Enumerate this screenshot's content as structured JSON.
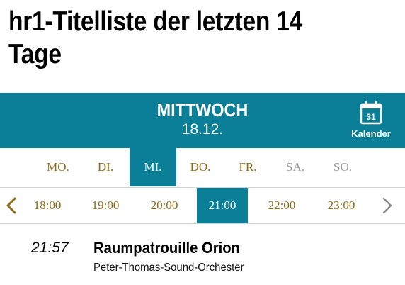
{
  "page": {
    "title": "hr1-Titelliste der letzten 14 Tage"
  },
  "day_header": {
    "day_name": "MITTWOCH",
    "date": "18.12.",
    "calendar_icon_number": "31",
    "calendar_label": "Kalender"
  },
  "weekdays": [
    {
      "label": "MO.",
      "state": "available"
    },
    {
      "label": "DI.",
      "state": "available"
    },
    {
      "label": "MI.",
      "state": "selected"
    },
    {
      "label": "DO.",
      "state": "available"
    },
    {
      "label": "FR.",
      "state": "available"
    },
    {
      "label": "SA.",
      "state": "disabled"
    },
    {
      "label": "SO.",
      "state": "disabled"
    }
  ],
  "time_slots": [
    {
      "label": "18:00",
      "state": "available"
    },
    {
      "label": "19:00",
      "state": "available"
    },
    {
      "label": "20:00",
      "state": "available"
    },
    {
      "label": "21:00",
      "state": "selected"
    },
    {
      "label": "22:00",
      "state": "available"
    },
    {
      "label": "23:00",
      "state": "available"
    }
  ],
  "nav": {
    "prev_icon": "chevron-left-icon",
    "next_icon": "chevron-right-icon"
  },
  "tracks": [
    {
      "time": "21:57",
      "title": "Raumpatrouille Orion",
      "artist": "Peter-Thomas-Sound-Orchester"
    }
  ],
  "colors": {
    "accent": "#0a7f97",
    "weekday_text": "#8c6c16",
    "disabled_text": "#9a9a9a",
    "arrow_left": "#8c6c16",
    "arrow_right": "#8a8a8a"
  }
}
